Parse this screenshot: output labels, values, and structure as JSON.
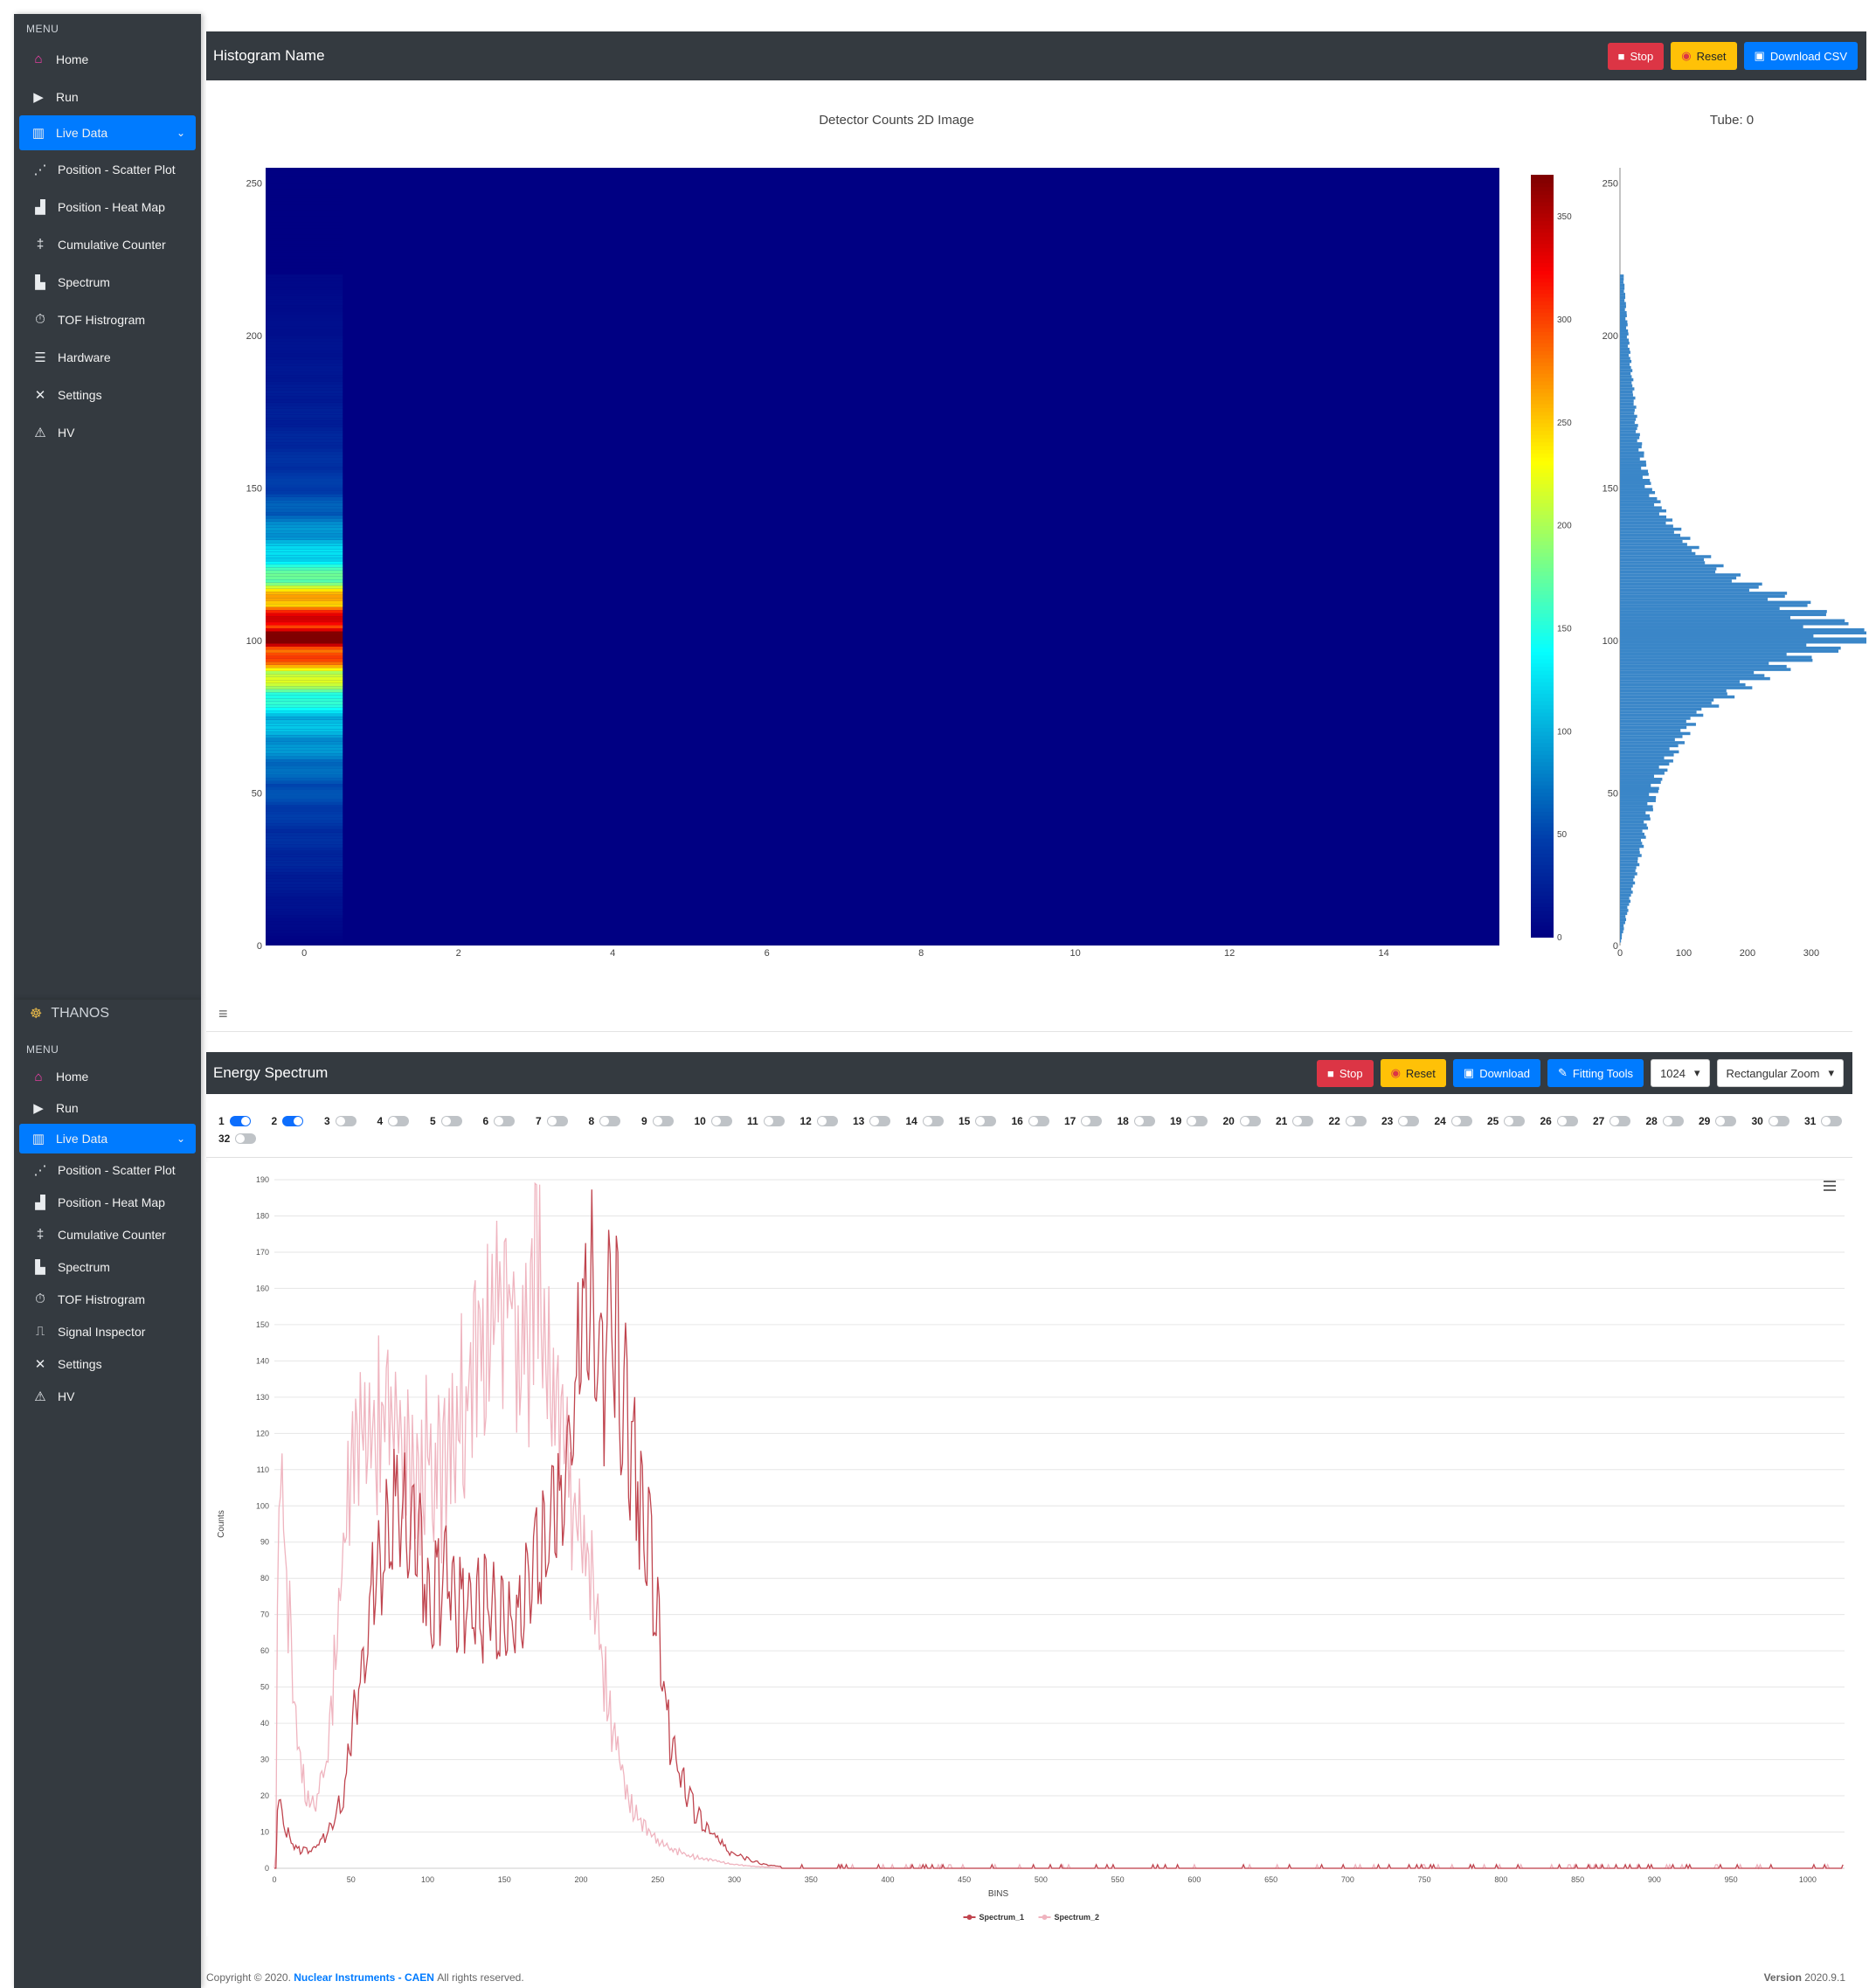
{
  "sidebar_top": {
    "menu_label": "MENU",
    "items": [
      {
        "label": "Home"
      },
      {
        "label": "Run"
      },
      {
        "label": "Live Data"
      },
      {
        "label": "Position - Scatter Plot"
      },
      {
        "label": "Position - Heat Map"
      },
      {
        "label": "Cumulative Counter"
      },
      {
        "label": "Spectrum"
      },
      {
        "label": "TOF Histrogram"
      },
      {
        "label": "Hardware"
      },
      {
        "label": "Settings"
      },
      {
        "label": "HV"
      }
    ]
  },
  "sidebar_bottom": {
    "brand": "THANOS",
    "menu_label": "MENU",
    "items": [
      {
        "label": "Home"
      },
      {
        "label": "Run"
      },
      {
        "label": "Live Data"
      },
      {
        "label": "Position - Scatter Plot"
      },
      {
        "label": "Position - Heat Map"
      },
      {
        "label": "Cumulative Counter"
      },
      {
        "label": "Spectrum"
      },
      {
        "label": "TOF Histrogram"
      },
      {
        "label": "Signal Inspector"
      },
      {
        "label": "Settings"
      },
      {
        "label": "HV"
      }
    ]
  },
  "histogram_panel": {
    "title": "Histogram Name",
    "stop_label": "Stop",
    "reset_label": "Reset",
    "download_label": "Download CSV",
    "plot_title": "Detector Counts 2D Image",
    "tube_label": "Tube: 0"
  },
  "energy_panel": {
    "title": "Energy Spectrum",
    "stop_label": "Stop",
    "reset_label": "Reset",
    "download_label": "Download",
    "fitting_label": "Fitting Tools",
    "bins_select": "1024",
    "zoom_select": "Rectangular Zoom"
  },
  "channels": [
    {
      "n": "1",
      "on": true
    },
    {
      "n": "2",
      "on": true
    },
    {
      "n": "3",
      "on": false
    },
    {
      "n": "4",
      "on": false
    },
    {
      "n": "5",
      "on": false
    },
    {
      "n": "6",
      "on": false
    },
    {
      "n": "7",
      "on": false
    },
    {
      "n": "8",
      "on": false
    },
    {
      "n": "9",
      "on": false
    },
    {
      "n": "10",
      "on": false
    },
    {
      "n": "11",
      "on": false
    },
    {
      "n": "12",
      "on": false
    },
    {
      "n": "13",
      "on": false
    },
    {
      "n": "14",
      "on": false
    },
    {
      "n": "15",
      "on": false
    },
    {
      "n": "16",
      "on": false
    },
    {
      "n": "17",
      "on": false
    },
    {
      "n": "18",
      "on": false
    },
    {
      "n": "19",
      "on": false
    },
    {
      "n": "20",
      "on": false
    },
    {
      "n": "21",
      "on": false
    },
    {
      "n": "22",
      "on": false
    },
    {
      "n": "23",
      "on": false
    },
    {
      "n": "24",
      "on": false
    },
    {
      "n": "25",
      "on": false
    },
    {
      "n": "26",
      "on": false
    },
    {
      "n": "27",
      "on": false
    },
    {
      "n": "28",
      "on": false
    },
    {
      "n": "29",
      "on": false
    },
    {
      "n": "30",
      "on": false
    },
    {
      "n": "31",
      "on": false
    },
    {
      "n": "32",
      "on": false
    }
  ],
  "footer": {
    "copyright": "Copyright © 2020.",
    "company": "Nuclear Instruments - CAEN",
    "rights": "All rights reserved.",
    "version_label": "Version",
    "version": "2020.9.1"
  },
  "chart_data": [
    {
      "type": "heatmap",
      "title": "Detector Counts 2D Image",
      "x_ticks": [
        "0",
        "2",
        "4",
        "6",
        "8",
        "10",
        "12",
        "14"
      ],
      "y_ticks": [
        "0",
        "50",
        "100",
        "150",
        "200",
        "250"
      ],
      "xlim": [
        -0.5,
        15.5
      ],
      "ylim": [
        0,
        255
      ],
      "colorbar_ticks": [
        "0",
        "50",
        "100",
        "150",
        "200",
        "250",
        "300",
        "350"
      ],
      "colorbar_range": [
        0,
        370
      ],
      "colorscale": "jet",
      "note_column": "only column 0 has non-zero counts",
      "column0_profile": [
        {
          "y": 20,
          "v": 20
        },
        {
          "y": 40,
          "v": 40
        },
        {
          "y": 55,
          "v": 60
        },
        {
          "y": 65,
          "v": 85
        },
        {
          "y": 75,
          "v": 110
        },
        {
          "y": 82,
          "v": 160
        },
        {
          "y": 88,
          "v": 210
        },
        {
          "y": 93,
          "v": 260
        },
        {
          "y": 97,
          "v": 310
        },
        {
          "y": 100,
          "v": 355
        },
        {
          "y": 103,
          "v": 350
        },
        {
          "y": 108,
          "v": 300
        },
        {
          "y": 113,
          "v": 260
        },
        {
          "y": 118,
          "v": 200
        },
        {
          "y": 123,
          "v": 150
        },
        {
          "y": 130,
          "v": 110
        },
        {
          "y": 140,
          "v": 70
        },
        {
          "y": 150,
          "v": 45
        },
        {
          "y": 170,
          "v": 25
        },
        {
          "y": 200,
          "v": 12
        },
        {
          "y": 220,
          "v": 5
        }
      ]
    },
    {
      "type": "bar",
      "orientation": "horizontal",
      "x_ticks": [
        "0",
        "100",
        "200",
        "300"
      ],
      "y_ticks": [
        "0",
        "50",
        "100",
        "150",
        "200",
        "250"
      ],
      "xlim": [
        0,
        370
      ],
      "ylim": [
        0,
        255
      ]
    },
    {
      "type": "line",
      "ylabel": "Counts",
      "xlabel": "BINS",
      "x_ticks": [
        "0",
        "50",
        "100",
        "150",
        "200",
        "250",
        "300",
        "350",
        "400",
        "450",
        "500",
        "550",
        "600",
        "650",
        "700",
        "750",
        "800",
        "850",
        "900",
        "950",
        "1000"
      ],
      "y_ticks": [
        "0",
        "10",
        "20",
        "30",
        "40",
        "50",
        "60",
        "70",
        "80",
        "90",
        "100",
        "110",
        "120",
        "130",
        "140",
        "150",
        "160",
        "170",
        "180",
        "190"
      ],
      "xlim": [
        0,
        1024
      ],
      "ylim": [
        0,
        190
      ],
      "series": [
        {
          "name": "Spectrum_1",
          "color": "#c0454f",
          "points": [
            [
              2,
              20
            ],
            [
              8,
              10
            ],
            [
              15,
              5
            ],
            [
              25,
              5
            ],
            [
              35,
              10
            ],
            [
              45,
              20
            ],
            [
              55,
              50
            ],
            [
              65,
              80
            ],
            [
              75,
              95
            ],
            [
              85,
              100
            ],
            [
              95,
              85
            ],
            [
              105,
              75
            ],
            [
              115,
              80
            ],
            [
              125,
              70
            ],
            [
              135,
              72
            ],
            [
              145,
              70
            ],
            [
              155,
              65
            ],
            [
              165,
              75
            ],
            [
              175,
              90
            ],
            [
              185,
              100
            ],
            [
              190,
              120
            ],
            [
              195,
              125
            ],
            [
              200,
              150
            ],
            [
              205,
              160
            ],
            [
              210,
              145
            ],
            [
              215,
              140
            ],
            [
              222,
              155
            ],
            [
              228,
              130
            ],
            [
              232,
              120
            ],
            [
              238,
              105
            ],
            [
              245,
              85
            ],
            [
              252,
              60
            ],
            [
              258,
              35
            ],
            [
              265,
              25
            ],
            [
              275,
              15
            ],
            [
              285,
              10
            ],
            [
              295,
              5
            ],
            [
              305,
              3
            ],
            [
              320,
              1
            ],
            [
              340,
              0
            ],
            [
              400,
              0
            ],
            [
              600,
              0
            ],
            [
              800,
              0
            ],
            [
              1023,
              0
            ]
          ]
        },
        {
          "name": "Spectrum_2",
          "color": "#efb4bf",
          "points": [
            [
              1,
              5
            ],
            [
              3,
              125
            ],
            [
              8,
              80
            ],
            [
              13,
              45
            ],
            [
              18,
              25
            ],
            [
              22,
              20
            ],
            [
              28,
              20
            ],
            [
              35,
              30
            ],
            [
              40,
              60
            ],
            [
              45,
              90
            ],
            [
              50,
              110
            ],
            [
              55,
              115
            ],
            [
              62,
              130
            ],
            [
              70,
              120
            ],
            [
              80,
              125
            ],
            [
              90,
              105
            ],
            [
              100,
              115
            ],
            [
              110,
              105
            ],
            [
              120,
              125
            ],
            [
              130,
              135
            ],
            [
              140,
              155
            ],
            [
              148,
              150
            ],
            [
              155,
              160
            ],
            [
              160,
              150
            ],
            [
              165,
              140
            ],
            [
              170,
              160
            ],
            [
              175,
              155
            ],
            [
              180,
              140
            ],
            [
              185,
              125
            ],
            [
              190,
              110
            ],
            [
              195,
              100
            ],
            [
              200,
              95
            ],
            [
              205,
              85
            ],
            [
              210,
              70
            ],
            [
              215,
              55
            ],
            [
              220,
              40
            ],
            [
              225,
              30
            ],
            [
              230,
              20
            ],
            [
              240,
              12
            ],
            [
              250,
              8
            ],
            [
              260,
              5
            ],
            [
              275,
              3
            ],
            [
              300,
              1
            ],
            [
              330,
              0
            ],
            [
              500,
              0
            ],
            [
              800,
              0
            ],
            [
              1023,
              0
            ]
          ]
        }
      ],
      "legend": "bottom"
    }
  ]
}
